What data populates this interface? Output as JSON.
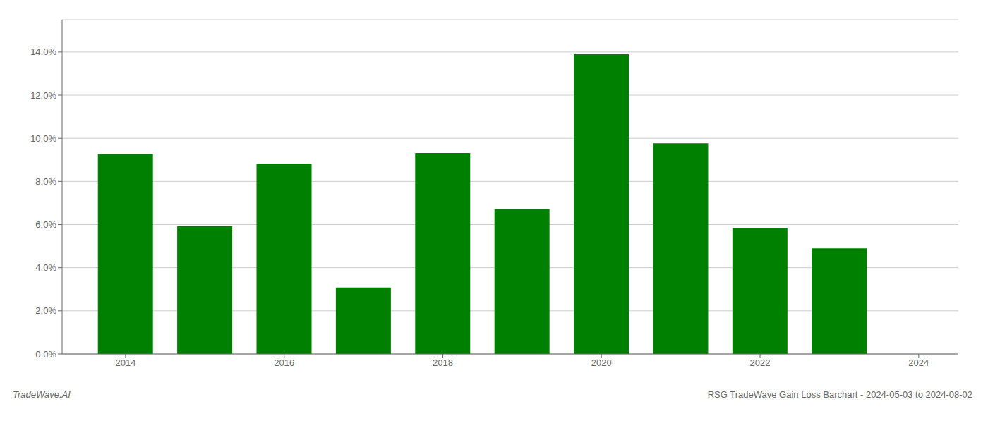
{
  "chart_data": {
    "type": "bar",
    "x": [
      2014,
      2015,
      2016,
      2017,
      2018,
      2019,
      2020,
      2021,
      2022,
      2023
    ],
    "values": [
      0.0927,
      0.0593,
      0.0882,
      0.0308,
      0.0932,
      0.0672,
      0.139,
      0.0977,
      0.0584,
      0.049
    ],
    "color": "#008000",
    "xlim": [
      2013.2,
      2024.5
    ],
    "xticks": [
      2014,
      2016,
      2018,
      2020,
      2022,
      2024
    ],
    "ylim": [
      0,
      0.155
    ],
    "yticks": [
      {
        "value": 0.0,
        "label": "0.0%"
      },
      {
        "value": 0.02,
        "label": "2.0%"
      },
      {
        "value": 0.04,
        "label": "4.0%"
      },
      {
        "value": 0.06,
        "label": "6.0%"
      },
      {
        "value": 0.08,
        "label": "8.0%"
      },
      {
        "value": 0.1,
        "label": "10.0%"
      },
      {
        "value": 0.12,
        "label": "12.0%"
      },
      {
        "value": 0.14,
        "label": "14.0%"
      }
    ],
    "grid": true,
    "annotations": [
      "TradeWave.AI",
      "RSG TradeWave Gain Loss Barchart - 2024-05-03 to 2024-08-02"
    ]
  }
}
